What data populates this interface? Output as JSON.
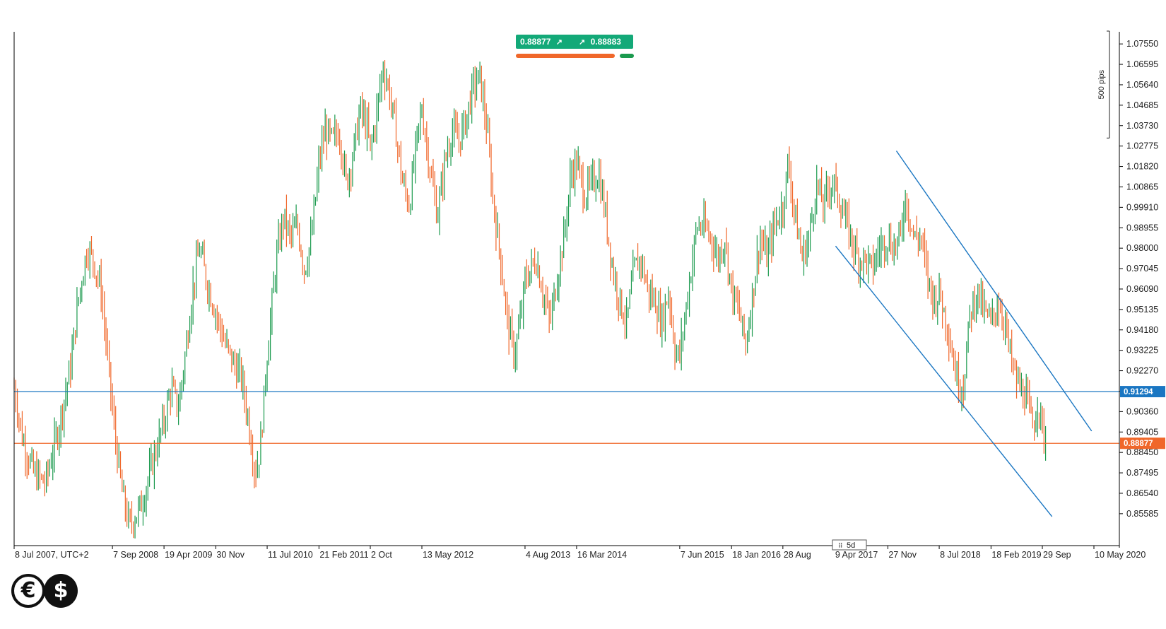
{
  "chart_data": {
    "type": "bar",
    "instrument_timezone": "UTC+2",
    "period": "5d",
    "y_ticks": [
      "1.07550",
      "1.06595",
      "1.05640",
      "1.04685",
      "1.03730",
      "1.02775",
      "1.01820",
      "1.00865",
      "0.99910",
      "0.98955",
      "0.98000",
      "0.97045",
      "0.96090",
      "0.95135",
      "0.94180",
      "0.93225",
      "0.92270",
      "0.91315",
      "0.90360",
      "0.89405",
      "0.88450",
      "0.87495",
      "0.86540",
      "0.85585"
    ],
    "ylim": [
      0.8475,
      1.0815
    ],
    "x_ticks": [
      {
        "date": "2007-07-08",
        "label": "8 Jul 2007, UTC+2"
      },
      {
        "date": "2008-09-07",
        "label": "7 Sep 2008"
      },
      {
        "date": "2009-04-19",
        "label": "19 Apr 2009"
      },
      {
        "date": "2009-11-30",
        "label": "30 Nov"
      },
      {
        "date": "2010-07-11",
        "label": "11 Jul 2010"
      },
      {
        "date": "2011-02-21",
        "label": "21 Feb 2011"
      },
      {
        "date": "2011-10-02",
        "label": "2 Oct"
      },
      {
        "date": "2012-05-13",
        "label": "13 May 2012"
      },
      {
        "date": "2013-08-04",
        "label": "4 Aug 2013"
      },
      {
        "date": "2014-03-16",
        "label": "16 Mar 2014"
      },
      {
        "date": "2015-06-07",
        "label": "7 Jun 2015"
      },
      {
        "date": "2016-01-18",
        "label": "18 Jan 2016"
      },
      {
        "date": "2016-08-28",
        "label": "28 Aug"
      },
      {
        "date": "2017-04-09",
        "label": "9 Apr 2017"
      },
      {
        "date": "2017-11-27",
        "label": "27 Nov"
      },
      {
        "date": "2018-07-08",
        "label": "8 Jul 2018"
      },
      {
        "date": "2019-02-18",
        "label": "18 Feb 2019"
      },
      {
        "date": "2019-09-29",
        "label": "29 Sep"
      },
      {
        "date": "2020-05-10",
        "label": "10 May 2020"
      }
    ],
    "xlim": [
      "2007-07-08",
      "2020-05-10"
    ],
    "price_path": [
      [
        "2007-07-08",
        0.915
      ],
      [
        "2007-08-15",
        0.89
      ],
      [
        "2007-10-01",
        0.875
      ],
      [
        "2007-11-20",
        0.87
      ],
      [
        "2008-01-15",
        0.895
      ],
      [
        "2008-03-10",
        0.925
      ],
      [
        "2008-04-10",
        0.955
      ],
      [
        "2008-05-20",
        0.98
      ],
      [
        "2008-06-15",
        0.975
      ],
      [
        "2008-07-20",
        0.96
      ],
      [
        "2008-08-20",
        0.925
      ],
      [
        "2008-09-15",
        0.895
      ],
      [
        "2008-10-20",
        0.865
      ],
      [
        "2008-11-20",
        0.85
      ],
      [
        "2009-01-10",
        0.86
      ],
      [
        "2009-03-01",
        0.88
      ],
      [
        "2009-04-20",
        0.9
      ],
      [
        "2009-05-20",
        0.915
      ],
      [
        "2009-06-20",
        0.905
      ],
      [
        "2009-07-20",
        0.93
      ],
      [
        "2009-08-20",
        0.96
      ],
      [
        "2009-09-20",
        0.98
      ],
      [
        "2009-10-20",
        0.965
      ],
      [
        "2009-11-30",
        0.95
      ],
      [
        "2010-01-10",
        0.935
      ],
      [
        "2010-02-20",
        0.925
      ],
      [
        "2010-03-20",
        0.92
      ],
      [
        "2010-04-20",
        0.9
      ],
      [
        "2010-05-20",
        0.875
      ],
      [
        "2010-06-10",
        0.885
      ],
      [
        "2010-07-11",
        0.93
      ],
      [
        "2010-08-20",
        0.975
      ],
      [
        "2010-09-20",
        0.995
      ],
      [
        "2010-10-20",
        0.985
      ],
      [
        "2010-11-20",
        0.99
      ],
      [
        "2010-12-20",
        0.97
      ],
      [
        "2011-01-20",
        0.985
      ],
      [
        "2011-02-21",
        1.02
      ],
      [
        "2011-03-20",
        1.035
      ],
      [
        "2011-04-20",
        1.03
      ],
      [
        "2011-05-20",
        1.035
      ],
      [
        "2011-06-20",
        1.01
      ],
      [
        "2011-07-20",
        1.025
      ],
      [
        "2011-08-20",
        1.045
      ],
      [
        "2011-09-20",
        1.035
      ],
      [
        "2011-10-02",
        1.025
      ],
      [
        "2011-11-01",
        1.045
      ],
      [
        "2011-11-25",
        1.065
      ],
      [
        "2011-12-20",
        1.055
      ],
      [
        "2012-01-20",
        1.035
      ],
      [
        "2012-02-20",
        1.01
      ],
      [
        "2012-03-20",
        1.0
      ],
      [
        "2012-04-20",
        1.03
      ],
      [
        "2012-05-13",
        1.045
      ],
      [
        "2012-06-20",
        1.015
      ],
      [
        "2012-07-20",
        0.995
      ],
      [
        "2012-08-20",
        1.02
      ],
      [
        "2012-09-20",
        1.035
      ],
      [
        "2012-10-20",
        1.03
      ],
      [
        "2012-11-20",
        1.04
      ],
      [
        "2012-12-20",
        1.055
      ],
      [
        "2013-01-20",
        1.06
      ],
      [
        "2013-02-20",
        1.035
      ],
      [
        "2013-03-20",
        1.0
      ],
      [
        "2013-04-20",
        0.975
      ],
      [
        "2013-05-20",
        0.945
      ],
      [
        "2013-06-20",
        0.93
      ],
      [
        "2013-07-20",
        0.95
      ],
      [
        "2013-08-04",
        0.965
      ],
      [
        "2013-09-20",
        0.975
      ],
      [
        "2013-10-20",
        0.96
      ],
      [
        "2013-11-20",
        0.945
      ],
      [
        "2013-12-20",
        0.965
      ],
      [
        "2014-01-20",
        0.985
      ],
      [
        "2014-02-20",
        1.015
      ],
      [
        "2014-03-16",
        1.02
      ],
      [
        "2014-04-20",
        1.005
      ],
      [
        "2014-05-20",
        1.01
      ],
      [
        "2014-06-20",
        1.015
      ],
      [
        "2014-07-20",
        0.995
      ],
      [
        "2014-08-20",
        0.97
      ],
      [
        "2014-09-20",
        0.955
      ],
      [
        "2014-10-20",
        0.945
      ],
      [
        "2014-11-20",
        0.97
      ],
      [
        "2014-12-20",
        0.975
      ],
      [
        "2015-01-20",
        0.96
      ],
      [
        "2015-02-20",
        0.955
      ],
      [
        "2015-03-20",
        0.945
      ],
      [
        "2015-04-20",
        0.96
      ],
      [
        "2015-05-20",
        0.93
      ],
      [
        "2015-06-07",
        0.93
      ],
      [
        "2015-07-20",
        0.965
      ],
      [
        "2015-08-20",
        0.99
      ],
      [
        "2015-09-20",
        0.99
      ],
      [
        "2015-10-20",
        0.985
      ],
      [
        "2015-11-20",
        0.975
      ],
      [
        "2015-12-20",
        0.985
      ],
      [
        "2016-01-18",
        0.96
      ],
      [
        "2016-02-20",
        0.95
      ],
      [
        "2016-03-20",
        0.935
      ],
      [
        "2016-04-20",
        0.96
      ],
      [
        "2016-05-20",
        0.985
      ],
      [
        "2016-06-20",
        0.975
      ],
      [
        "2016-07-20",
        0.99
      ],
      [
        "2016-08-28",
        1.0
      ],
      [
        "2016-09-20",
        1.02
      ],
      [
        "2016-10-20",
        0.995
      ],
      [
        "2016-11-20",
        0.975
      ],
      [
        "2016-12-20",
        0.985
      ],
      [
        "2017-01-20",
        1.01
      ],
      [
        "2017-02-20",
        1.0
      ],
      [
        "2017-03-20",
        1.01
      ],
      [
        "2017-04-09",
        1.01
      ],
      [
        "2017-05-20",
        0.995
      ],
      [
        "2017-06-20",
        0.985
      ],
      [
        "2017-07-20",
        0.975
      ],
      [
        "2017-08-20",
        0.975
      ],
      [
        "2017-09-20",
        0.97
      ],
      [
        "2017-10-20",
        0.98
      ],
      [
        "2017-11-27",
        0.985
      ],
      [
        "2017-12-20",
        0.98
      ],
      [
        "2018-01-20",
        0.985
      ],
      [
        "2018-02-10",
        1.005
      ],
      [
        "2018-03-20",
        0.985
      ],
      [
        "2018-04-20",
        0.985
      ],
      [
        "2018-05-20",
        0.965
      ],
      [
        "2018-06-20",
        0.955
      ],
      [
        "2018-07-08",
        0.96
      ],
      [
        "2018-08-20",
        0.94
      ],
      [
        "2018-09-20",
        0.92
      ],
      [
        "2018-10-20",
        0.915
      ],
      [
        "2018-11-20",
        0.95
      ],
      [
        "2018-12-20",
        0.96
      ],
      [
        "2019-01-20",
        0.95
      ],
      [
        "2019-02-18",
        0.945
      ],
      [
        "2019-03-20",
        0.955
      ],
      [
        "2019-04-20",
        0.945
      ],
      [
        "2019-05-20",
        0.925
      ],
      [
        "2019-06-20",
        0.915
      ],
      [
        "2019-07-20",
        0.91
      ],
      [
        "2019-08-20",
        0.895
      ],
      [
        "2019-09-10",
        0.91
      ],
      [
        "2019-09-29",
        0.895
      ],
      [
        "2019-10-15",
        0.889
      ]
    ],
    "horizontal_lines": [
      {
        "value": 0.91294,
        "label": "0.91294",
        "color": "#1a76c2",
        "label_color": "#1a76c2"
      },
      {
        "value": 0.88877,
        "label": "0.88877",
        "color": "#f0672a",
        "label_color": "#f0672a"
      }
    ],
    "trend_channel": {
      "color": "#1a76c2",
      "upper": [
        [
          "2018-01-03",
          1.0255
        ],
        [
          "2020-04-30",
          0.8945
        ]
      ],
      "lower": [
        [
          "2017-04-14",
          0.981
        ],
        [
          "2019-11-10",
          0.8545
        ]
      ]
    },
    "pips_ruler": {
      "label": "500 pips",
      "from": 1.0815,
      "to": 1.0315
    },
    "up_color": "#1b9a4e",
    "down_color": "#f0672a",
    "grid": false
  },
  "quote": {
    "bid": "0.88877",
    "ask": "0.88883",
    "bid_arrow": "↗",
    "ask_arrow": "↗",
    "bid_color": "#13a978",
    "ask_color": "#13a978"
  },
  "logo": {
    "left_symbol": "€",
    "right_symbol": "$"
  }
}
